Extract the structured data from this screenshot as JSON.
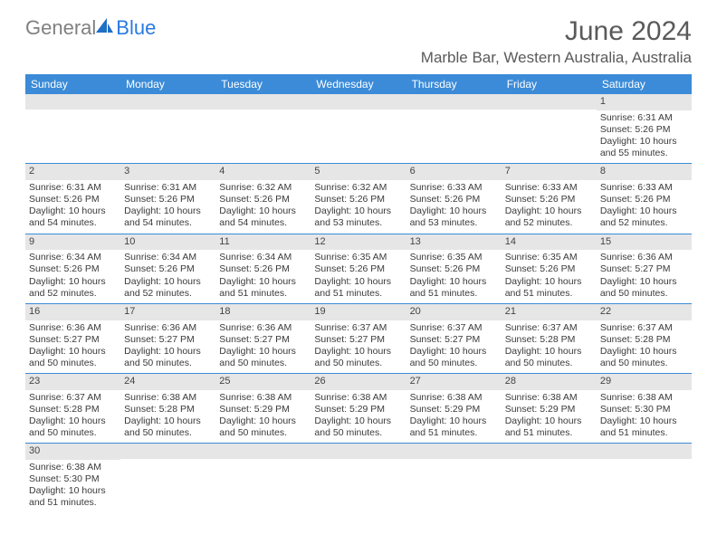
{
  "brand": {
    "part1": "General",
    "part2": "Blue"
  },
  "title": {
    "month": "June 2024",
    "location": "Marble Bar, Western Australia, Australia"
  },
  "colors": {
    "header_bg": "#3b8bd8",
    "header_text": "#ffffff",
    "daynum_bg": "#e6e6e6",
    "text": "#3a3a3a",
    "title_text": "#5a5a5a",
    "logo_gray": "#808080",
    "logo_blue": "#2a7adf",
    "row_border": "#3b8bd8"
  },
  "dayNames": [
    "Sunday",
    "Monday",
    "Tuesday",
    "Wednesday",
    "Thursday",
    "Friday",
    "Saturday"
  ],
  "weeks": [
    [
      {
        "n": "",
        "sr": "",
        "ss": "",
        "dl1": "",
        "dl2": ""
      },
      {
        "n": "",
        "sr": "",
        "ss": "",
        "dl1": "",
        "dl2": ""
      },
      {
        "n": "",
        "sr": "",
        "ss": "",
        "dl1": "",
        "dl2": ""
      },
      {
        "n": "",
        "sr": "",
        "ss": "",
        "dl1": "",
        "dl2": ""
      },
      {
        "n": "",
        "sr": "",
        "ss": "",
        "dl1": "",
        "dl2": ""
      },
      {
        "n": "",
        "sr": "",
        "ss": "",
        "dl1": "",
        "dl2": ""
      },
      {
        "n": "1",
        "sr": "Sunrise: 6:31 AM",
        "ss": "Sunset: 5:26 PM",
        "dl1": "Daylight: 10 hours",
        "dl2": "and 55 minutes."
      }
    ],
    [
      {
        "n": "2",
        "sr": "Sunrise: 6:31 AM",
        "ss": "Sunset: 5:26 PM",
        "dl1": "Daylight: 10 hours",
        "dl2": "and 54 minutes."
      },
      {
        "n": "3",
        "sr": "Sunrise: 6:31 AM",
        "ss": "Sunset: 5:26 PM",
        "dl1": "Daylight: 10 hours",
        "dl2": "and 54 minutes."
      },
      {
        "n": "4",
        "sr": "Sunrise: 6:32 AM",
        "ss": "Sunset: 5:26 PM",
        "dl1": "Daylight: 10 hours",
        "dl2": "and 54 minutes."
      },
      {
        "n": "5",
        "sr": "Sunrise: 6:32 AM",
        "ss": "Sunset: 5:26 PM",
        "dl1": "Daylight: 10 hours",
        "dl2": "and 53 minutes."
      },
      {
        "n": "6",
        "sr": "Sunrise: 6:33 AM",
        "ss": "Sunset: 5:26 PM",
        "dl1": "Daylight: 10 hours",
        "dl2": "and 53 minutes."
      },
      {
        "n": "7",
        "sr": "Sunrise: 6:33 AM",
        "ss": "Sunset: 5:26 PM",
        "dl1": "Daylight: 10 hours",
        "dl2": "and 52 minutes."
      },
      {
        "n": "8",
        "sr": "Sunrise: 6:33 AM",
        "ss": "Sunset: 5:26 PM",
        "dl1": "Daylight: 10 hours",
        "dl2": "and 52 minutes."
      }
    ],
    [
      {
        "n": "9",
        "sr": "Sunrise: 6:34 AM",
        "ss": "Sunset: 5:26 PM",
        "dl1": "Daylight: 10 hours",
        "dl2": "and 52 minutes."
      },
      {
        "n": "10",
        "sr": "Sunrise: 6:34 AM",
        "ss": "Sunset: 5:26 PM",
        "dl1": "Daylight: 10 hours",
        "dl2": "and 52 minutes."
      },
      {
        "n": "11",
        "sr": "Sunrise: 6:34 AM",
        "ss": "Sunset: 5:26 PM",
        "dl1": "Daylight: 10 hours",
        "dl2": "and 51 minutes."
      },
      {
        "n": "12",
        "sr": "Sunrise: 6:35 AM",
        "ss": "Sunset: 5:26 PM",
        "dl1": "Daylight: 10 hours",
        "dl2": "and 51 minutes."
      },
      {
        "n": "13",
        "sr": "Sunrise: 6:35 AM",
        "ss": "Sunset: 5:26 PM",
        "dl1": "Daylight: 10 hours",
        "dl2": "and 51 minutes."
      },
      {
        "n": "14",
        "sr": "Sunrise: 6:35 AM",
        "ss": "Sunset: 5:26 PM",
        "dl1": "Daylight: 10 hours",
        "dl2": "and 51 minutes."
      },
      {
        "n": "15",
        "sr": "Sunrise: 6:36 AM",
        "ss": "Sunset: 5:27 PM",
        "dl1": "Daylight: 10 hours",
        "dl2": "and 50 minutes."
      }
    ],
    [
      {
        "n": "16",
        "sr": "Sunrise: 6:36 AM",
        "ss": "Sunset: 5:27 PM",
        "dl1": "Daylight: 10 hours",
        "dl2": "and 50 minutes."
      },
      {
        "n": "17",
        "sr": "Sunrise: 6:36 AM",
        "ss": "Sunset: 5:27 PM",
        "dl1": "Daylight: 10 hours",
        "dl2": "and 50 minutes."
      },
      {
        "n": "18",
        "sr": "Sunrise: 6:36 AM",
        "ss": "Sunset: 5:27 PM",
        "dl1": "Daylight: 10 hours",
        "dl2": "and 50 minutes."
      },
      {
        "n": "19",
        "sr": "Sunrise: 6:37 AM",
        "ss": "Sunset: 5:27 PM",
        "dl1": "Daylight: 10 hours",
        "dl2": "and 50 minutes."
      },
      {
        "n": "20",
        "sr": "Sunrise: 6:37 AM",
        "ss": "Sunset: 5:27 PM",
        "dl1": "Daylight: 10 hours",
        "dl2": "and 50 minutes."
      },
      {
        "n": "21",
        "sr": "Sunrise: 6:37 AM",
        "ss": "Sunset: 5:28 PM",
        "dl1": "Daylight: 10 hours",
        "dl2": "and 50 minutes."
      },
      {
        "n": "22",
        "sr": "Sunrise: 6:37 AM",
        "ss": "Sunset: 5:28 PM",
        "dl1": "Daylight: 10 hours",
        "dl2": "and 50 minutes."
      }
    ],
    [
      {
        "n": "23",
        "sr": "Sunrise: 6:37 AM",
        "ss": "Sunset: 5:28 PM",
        "dl1": "Daylight: 10 hours",
        "dl2": "and 50 minutes."
      },
      {
        "n": "24",
        "sr": "Sunrise: 6:38 AM",
        "ss": "Sunset: 5:28 PM",
        "dl1": "Daylight: 10 hours",
        "dl2": "and 50 minutes."
      },
      {
        "n": "25",
        "sr": "Sunrise: 6:38 AM",
        "ss": "Sunset: 5:29 PM",
        "dl1": "Daylight: 10 hours",
        "dl2": "and 50 minutes."
      },
      {
        "n": "26",
        "sr": "Sunrise: 6:38 AM",
        "ss": "Sunset: 5:29 PM",
        "dl1": "Daylight: 10 hours",
        "dl2": "and 50 minutes."
      },
      {
        "n": "27",
        "sr": "Sunrise: 6:38 AM",
        "ss": "Sunset: 5:29 PM",
        "dl1": "Daylight: 10 hours",
        "dl2": "and 51 minutes."
      },
      {
        "n": "28",
        "sr": "Sunrise: 6:38 AM",
        "ss": "Sunset: 5:29 PM",
        "dl1": "Daylight: 10 hours",
        "dl2": "and 51 minutes."
      },
      {
        "n": "29",
        "sr": "Sunrise: 6:38 AM",
        "ss": "Sunset: 5:30 PM",
        "dl1": "Daylight: 10 hours",
        "dl2": "and 51 minutes."
      }
    ],
    [
      {
        "n": "30",
        "sr": "Sunrise: 6:38 AM",
        "ss": "Sunset: 5:30 PM",
        "dl1": "Daylight: 10 hours",
        "dl2": "and 51 minutes."
      },
      {
        "n": "",
        "sr": "",
        "ss": "",
        "dl1": "",
        "dl2": ""
      },
      {
        "n": "",
        "sr": "",
        "ss": "",
        "dl1": "",
        "dl2": ""
      },
      {
        "n": "",
        "sr": "",
        "ss": "",
        "dl1": "",
        "dl2": ""
      },
      {
        "n": "",
        "sr": "",
        "ss": "",
        "dl1": "",
        "dl2": ""
      },
      {
        "n": "",
        "sr": "",
        "ss": "",
        "dl1": "",
        "dl2": ""
      },
      {
        "n": "",
        "sr": "",
        "ss": "",
        "dl1": "",
        "dl2": ""
      }
    ]
  ]
}
